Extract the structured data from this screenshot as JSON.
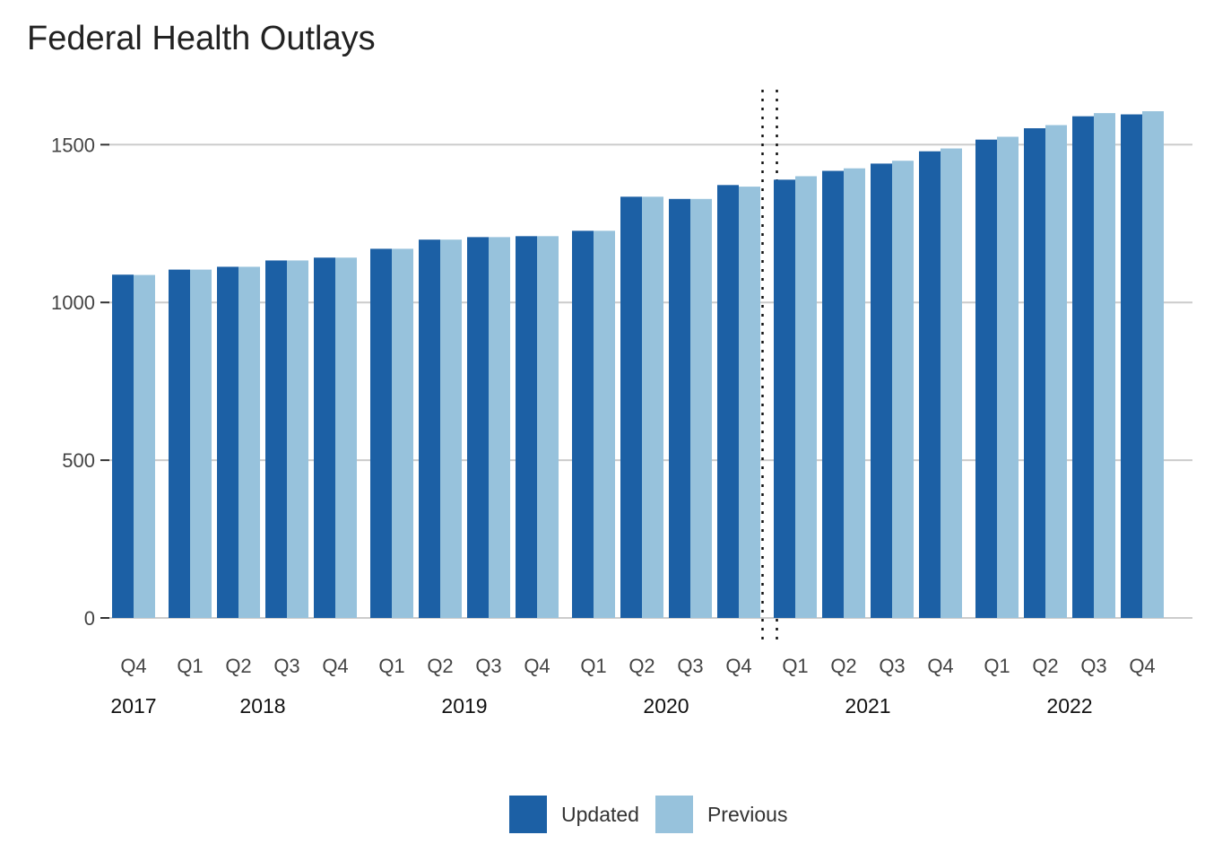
{
  "chart_data": {
    "type": "bar",
    "title": "Federal Health Outlays",
    "ylim": [
      0,
      1600
    ],
    "yticks": [
      0,
      500,
      1000,
      1500
    ],
    "grid": true,
    "legend_position": "bottom",
    "years": [
      {
        "label": "2017",
        "quarters": [
          "Q4"
        ]
      },
      {
        "label": "2018",
        "quarters": [
          "Q1",
          "Q2",
          "Q3",
          "Q4"
        ]
      },
      {
        "label": "2019",
        "quarters": [
          "Q1",
          "Q2",
          "Q3",
          "Q4"
        ]
      },
      {
        "label": "2020",
        "quarters": [
          "Q1",
          "Q2",
          "Q3",
          "Q4"
        ]
      },
      {
        "label": "2021",
        "quarters": [
          "Q1",
          "Q2",
          "Q3",
          "Q4"
        ]
      },
      {
        "label": "2022",
        "quarters": [
          "Q1",
          "Q2",
          "Q3",
          "Q4"
        ]
      }
    ],
    "forecast_divider_after": "2020 Q4",
    "series": [
      {
        "name": "Updated",
        "color": "#1c60a5",
        "values": [
          1088,
          1104,
          1113,
          1133,
          1142,
          1170,
          1199,
          1207,
          1210,
          1227,
          1335,
          1328,
          1372,
          1389,
          1417,
          1440,
          1479,
          1516,
          1552,
          1590,
          1596
        ]
      },
      {
        "name": "Previous",
        "color": "#97c2dc",
        "values": [
          1087,
          1104,
          1113,
          1133,
          1142,
          1170,
          1199,
          1207,
          1210,
          1227,
          1335,
          1328,
          1367,
          1400,
          1425,
          1449,
          1488,
          1525,
          1562,
          1600,
          1606
        ]
      }
    ]
  }
}
